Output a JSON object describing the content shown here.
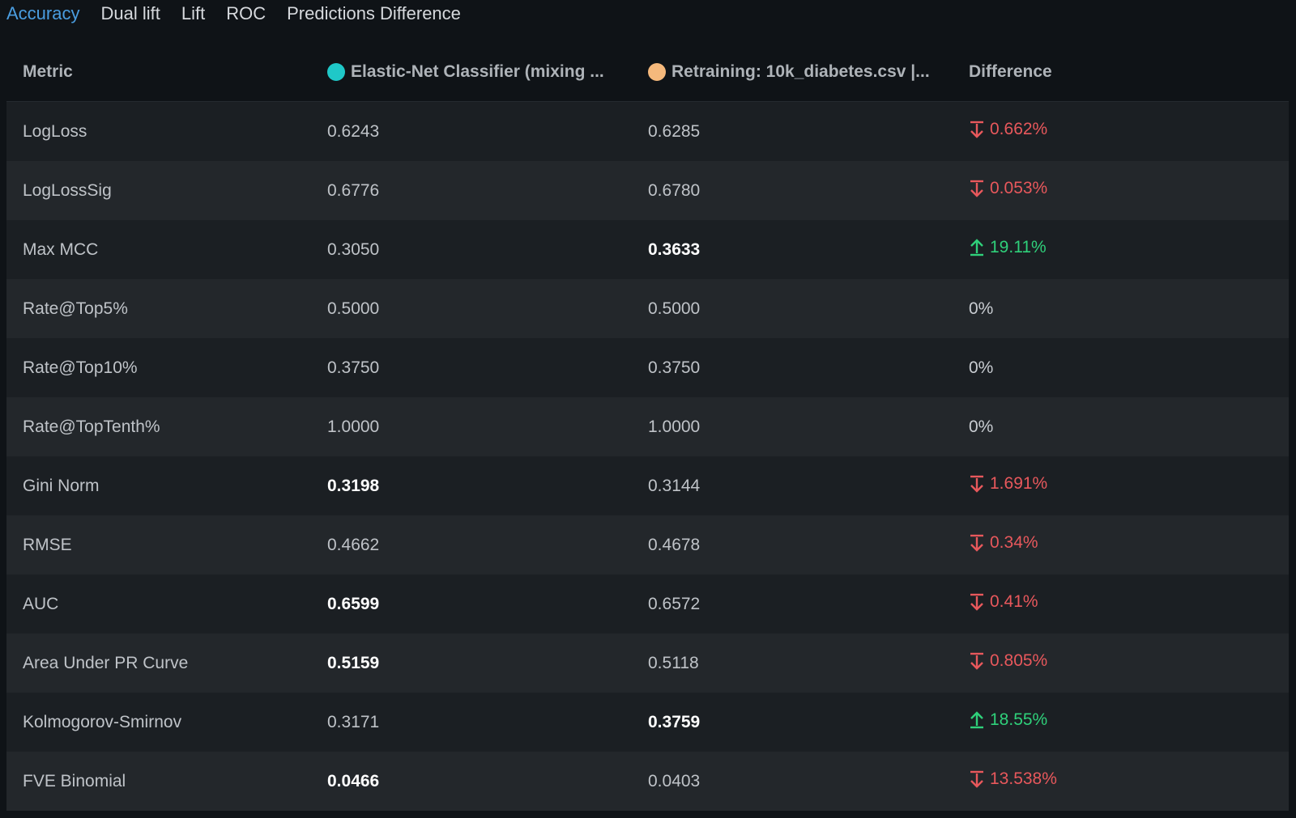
{
  "tabs": [
    {
      "label": "Accuracy",
      "active": true
    },
    {
      "label": "Dual lift",
      "active": false
    },
    {
      "label": "Lift",
      "active": false
    },
    {
      "label": "ROC",
      "active": false
    },
    {
      "label": "Predictions Difference",
      "active": false
    }
  ],
  "colors": {
    "model_a": "#1fc8c8",
    "model_b": "#f5b97c",
    "accent": "#4a9de0",
    "down": "#e8585c",
    "up": "#2fd07a"
  },
  "table": {
    "headers": {
      "metric": "Metric",
      "model_a": "Elastic-Net Classifier (mixing ...",
      "model_b": "Retraining: 10k_diabetes.csv |...",
      "difference": "Difference"
    },
    "rows": [
      {
        "metric": "LogLoss",
        "a": "0.6243",
        "b": "0.6285",
        "best": "",
        "diff": "0.662%",
        "dir": "down"
      },
      {
        "metric": "LogLossSig",
        "a": "0.6776",
        "b": "0.6780",
        "best": "",
        "diff": "0.053%",
        "dir": "down"
      },
      {
        "metric": "Max MCC",
        "a": "0.3050",
        "b": "0.3633",
        "best": "b",
        "diff": "19.11%",
        "dir": "up"
      },
      {
        "metric": "Rate@Top5%",
        "a": "0.5000",
        "b": "0.5000",
        "best": "",
        "diff": "0%",
        "dir": "neutral"
      },
      {
        "metric": "Rate@Top10%",
        "a": "0.3750",
        "b": "0.3750",
        "best": "",
        "diff": "0%",
        "dir": "neutral"
      },
      {
        "metric": "Rate@TopTenth%",
        "a": "1.0000",
        "b": "1.0000",
        "best": "",
        "diff": "0%",
        "dir": "neutral"
      },
      {
        "metric": "Gini Norm",
        "a": "0.3198",
        "b": "0.3144",
        "best": "a",
        "diff": "1.691%",
        "dir": "down"
      },
      {
        "metric": "RMSE",
        "a": "0.4662",
        "b": "0.4678",
        "best": "",
        "diff": "0.34%",
        "dir": "down"
      },
      {
        "metric": "AUC",
        "a": "0.6599",
        "b": "0.6572",
        "best": "a",
        "diff": "0.41%",
        "dir": "down"
      },
      {
        "metric": "Area Under PR Curve",
        "a": "0.5159",
        "b": "0.5118",
        "best": "a",
        "diff": "0.805%",
        "dir": "down"
      },
      {
        "metric": "Kolmogorov-Smirnov",
        "a": "0.3171",
        "b": "0.3759",
        "best": "b",
        "diff": "18.55%",
        "dir": "up"
      },
      {
        "metric": "FVE Binomial",
        "a": "0.0466",
        "b": "0.0403",
        "best": "a",
        "diff": "13.538%",
        "dir": "down"
      }
    ]
  }
}
